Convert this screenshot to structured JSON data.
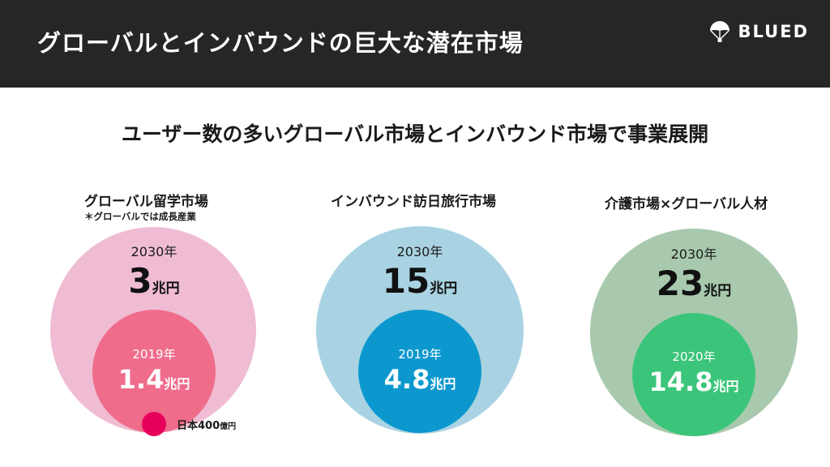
{
  "header": {
    "title": "グローバルとインバウンドの巨大な潜在市場",
    "brand": "BLUED",
    "brand_icon": "parachute-icon"
  },
  "subtitle": "ユーザー数の多いグローバル市場とインバウンド市場で事業展開",
  "markets": [
    {
      "title": "グローバル留学市場",
      "note": "＊グローバルでは成長産業",
      "outer": {
        "year": "2030年",
        "value": "3",
        "unit": "兆円",
        "color": "#f0bcd3"
      },
      "inner": {
        "year": "2019年",
        "value": "1.4",
        "unit": "兆円",
        "color": "#ef6c8b"
      },
      "japan": {
        "label": "日本",
        "value": "400",
        "unit": "億円",
        "color": "#e6005a"
      }
    },
    {
      "title": "インバウンド訪日旅行市場",
      "outer": {
        "year": "2030年",
        "value": "15",
        "unit": "兆円",
        "color": "#a9d3e2"
      },
      "inner": {
        "year": "2019年",
        "value": "4.8",
        "unit": "兆円",
        "color": "#0c98cf"
      }
    },
    {
      "title": "介護市場×グローバル人材",
      "outer": {
        "year": "2030年",
        "value": "23",
        "unit": "兆円",
        "color": "#a8c9ad"
      },
      "inner": {
        "year": "2020年",
        "value": "14.8",
        "unit": "兆円",
        "color": "#3bc57a"
      }
    }
  ]
}
